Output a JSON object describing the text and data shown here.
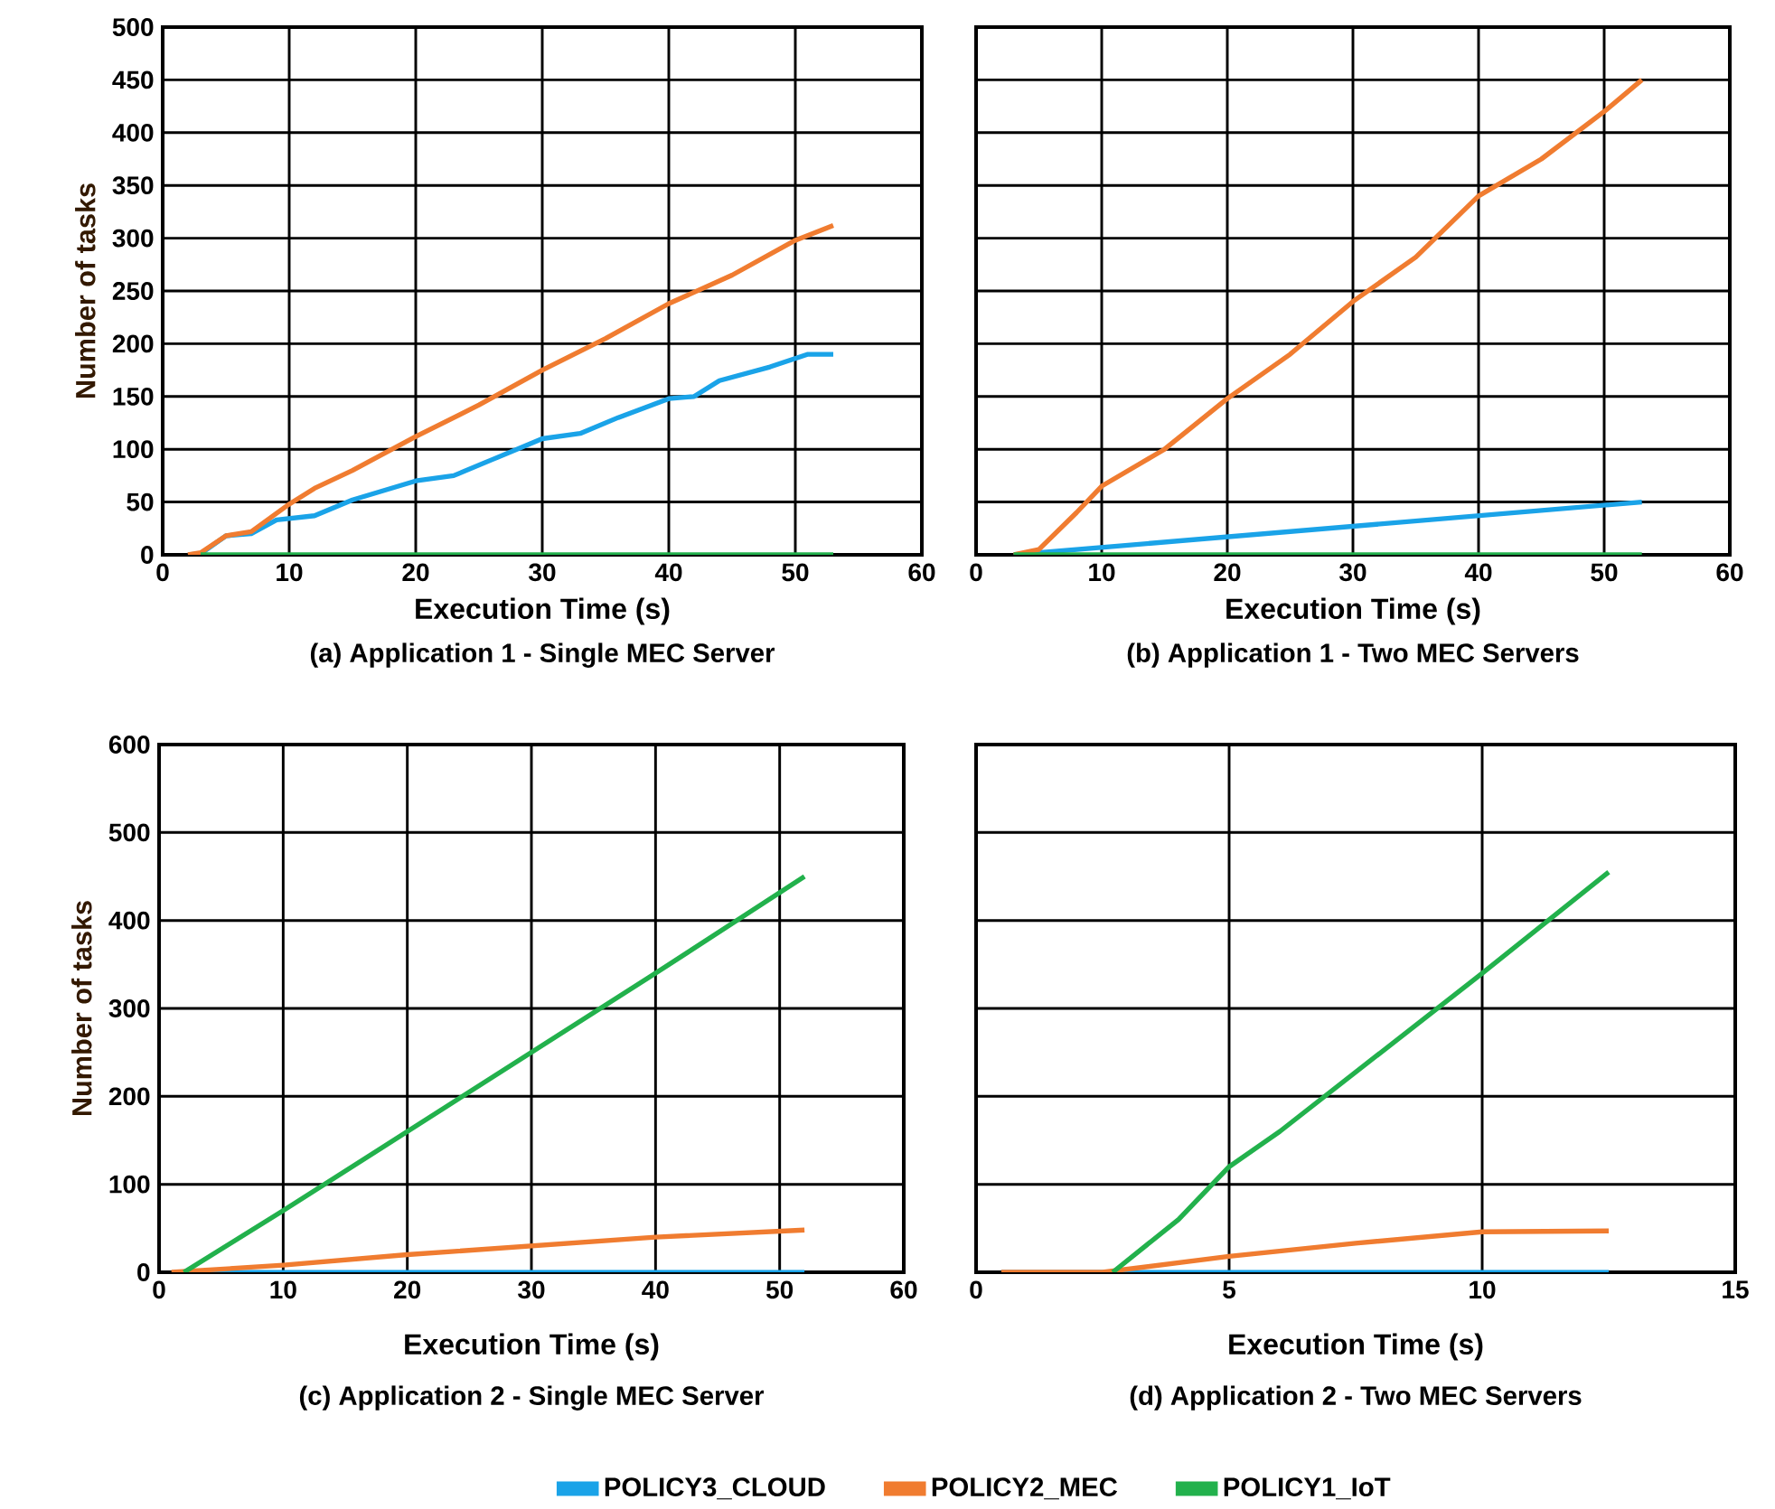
{
  "chart_data": [
    {
      "type": "line",
      "title": "(a) Application 1 - Single MEC Server",
      "xlabel": "Execution Time (s)",
      "ylabel": "Number of tasks",
      "xlim": [
        0,
        60
      ],
      "ylim": [
        0,
        500
      ],
      "xticks": [
        0,
        10,
        20,
        30,
        40,
        50,
        60
      ],
      "yticks": [
        0,
        50,
        100,
        150,
        200,
        250,
        300,
        350,
        400,
        450,
        500
      ],
      "grid": true,
      "series": [
        {
          "color": "#1aa3e8",
          "x": [
            2,
            3,
            5,
            7,
            9,
            12,
            15,
            20,
            23,
            26,
            30,
            33,
            36,
            40,
            42,
            44,
            48,
            51,
            53
          ],
          "values": [
            0,
            1,
            18,
            20,
            33,
            37,
            52,
            70,
            75,
            90,
            110,
            115,
            130,
            148,
            150,
            165,
            178,
            190,
            190
          ]
        },
        {
          "color": "#f07c30",
          "x": [
            2,
            3,
            5,
            7,
            10,
            12,
            15,
            20,
            25,
            30,
            35,
            40,
            45,
            50,
            53
          ],
          "values": [
            0,
            2,
            18,
            22,
            48,
            63,
            80,
            112,
            142,
            175,
            205,
            238,
            265,
            298,
            312
          ]
        },
        {
          "color": "#22b14c",
          "x": [
            3,
            53
          ],
          "values": [
            0,
            0
          ]
        }
      ]
    },
    {
      "type": "line",
      "title": "(b) Application 1 - Two MEC Servers",
      "xlabel": "Execution Time (s)",
      "xlim": [
        0,
        60
      ],
      "ylim": [
        0,
        500
      ],
      "xticks": [
        0,
        10,
        20,
        30,
        40,
        50,
        60
      ],
      "yticks": [
        0,
        50,
        100,
        150,
        200,
        250,
        300,
        350,
        400,
        450,
        500
      ],
      "grid": true,
      "tick_labels": "x",
      "series": [
        {
          "color": "#1aa3e8",
          "x": [
            3,
            53
          ],
          "values": [
            0,
            50
          ]
        },
        {
          "color": "#f07c30",
          "x": [
            3,
            5,
            8,
            10,
            15,
            20,
            25,
            30,
            35,
            40,
            45,
            50,
            53
          ],
          "values": [
            0,
            5,
            40,
            65,
            100,
            148,
            190,
            240,
            282,
            340,
            375,
            420,
            450
          ]
        },
        {
          "color": "#22b14c",
          "x": [
            3,
            53
          ],
          "values": [
            0,
            0
          ]
        }
      ]
    },
    {
      "type": "line",
      "title": "(c) Application 2 - Single MEC Server",
      "xlabel": "Execution Time (s)",
      "ylabel": "Number of tasks",
      "xlim": [
        0,
        60
      ],
      "ylim": [
        0,
        600
      ],
      "xticks": [
        0,
        10,
        20,
        30,
        40,
        50,
        60
      ],
      "yticks": [
        0,
        100,
        200,
        300,
        400,
        500,
        600
      ],
      "grid": true,
      "legend": "bottom",
      "series": [
        {
          "name": "POLICY3_CLOUD",
          "color": "#1aa3e8",
          "x": [
            2,
            52
          ],
          "values": [
            0,
            0
          ]
        },
        {
          "name": "POLICY2_MEC",
          "color": "#f07c30",
          "x": [
            1,
            10,
            20,
            30,
            40,
            52
          ],
          "values": [
            0,
            8,
            20,
            30,
            40,
            48
          ]
        },
        {
          "name": "POLICY1_IoT",
          "color": "#22b14c",
          "x": [
            2,
            10,
            20,
            30,
            40,
            52
          ],
          "values": [
            0,
            70,
            160,
            250,
            340,
            450
          ]
        }
      ]
    },
    {
      "type": "line",
      "title": "(d) Application 2 - Two MEC Servers",
      "xlabel": "Execution Time (s)",
      "xlim": [
        0,
        15
      ],
      "ylim": [
        0,
        600
      ],
      "xticks": [
        0,
        5,
        10,
        15
      ],
      "yticks": [
        0,
        100,
        200,
        300,
        400,
        500,
        600
      ],
      "grid": true,
      "tick_labels": "x",
      "series": [
        {
          "color": "#1aa3e8",
          "x": [
            0.5,
            12.5
          ],
          "values": [
            0,
            0
          ]
        },
        {
          "color": "#f07c30",
          "x": [
            0.5,
            2.5,
            5,
            7.5,
            10,
            12.5
          ],
          "values": [
            0,
            0,
            18,
            33,
            46,
            47
          ]
        },
        {
          "color": "#22b14c",
          "x": [
            2.7,
            4,
            5,
            6,
            8,
            10,
            12.5
          ],
          "values": [
            0,
            60,
            120,
            160,
            250,
            340,
            455
          ]
        }
      ]
    }
  ]
}
